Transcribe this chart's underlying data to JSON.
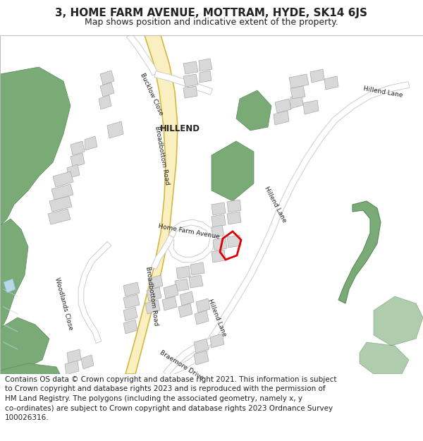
{
  "title_line1": "3, HOME FARM AVENUE, MOTTRAM, HYDE, SK14 6JS",
  "title_line2": "Map shows position and indicative extent of the property.",
  "footer_text": "Contains OS data © Crown copyright and database right 2021. This information is subject\nto Crown copyright and database rights 2023 and is reproduced with the permission of\nHM Land Registry. The polygons (including the associated geometry, namely x, y\nco-ordinates) are subject to Crown copyright and database rights 2023 Ordnance Survey\n100026316.",
  "bg_color": "#ffffff",
  "map_bg": "#f7f5f0",
  "road_yellow_fill": "#faefc0",
  "road_yellow_edge": "#d4b840",
  "road_white": "#ffffff",
  "road_edge": "#cccccc",
  "building_fill": "#d8d8d8",
  "building_edge": "#aaaaaa",
  "green_fill": "#7aaa76",
  "green_edge": "#5a8a5a",
  "water_blue": "#b8d8e8",
  "highlight_red": "#dd0000",
  "text_dark": "#222222",
  "title_fontsize": 11,
  "subtitle_fontsize": 9,
  "footer_fontsize": 7.5,
  "label_fontsize": 6.5
}
